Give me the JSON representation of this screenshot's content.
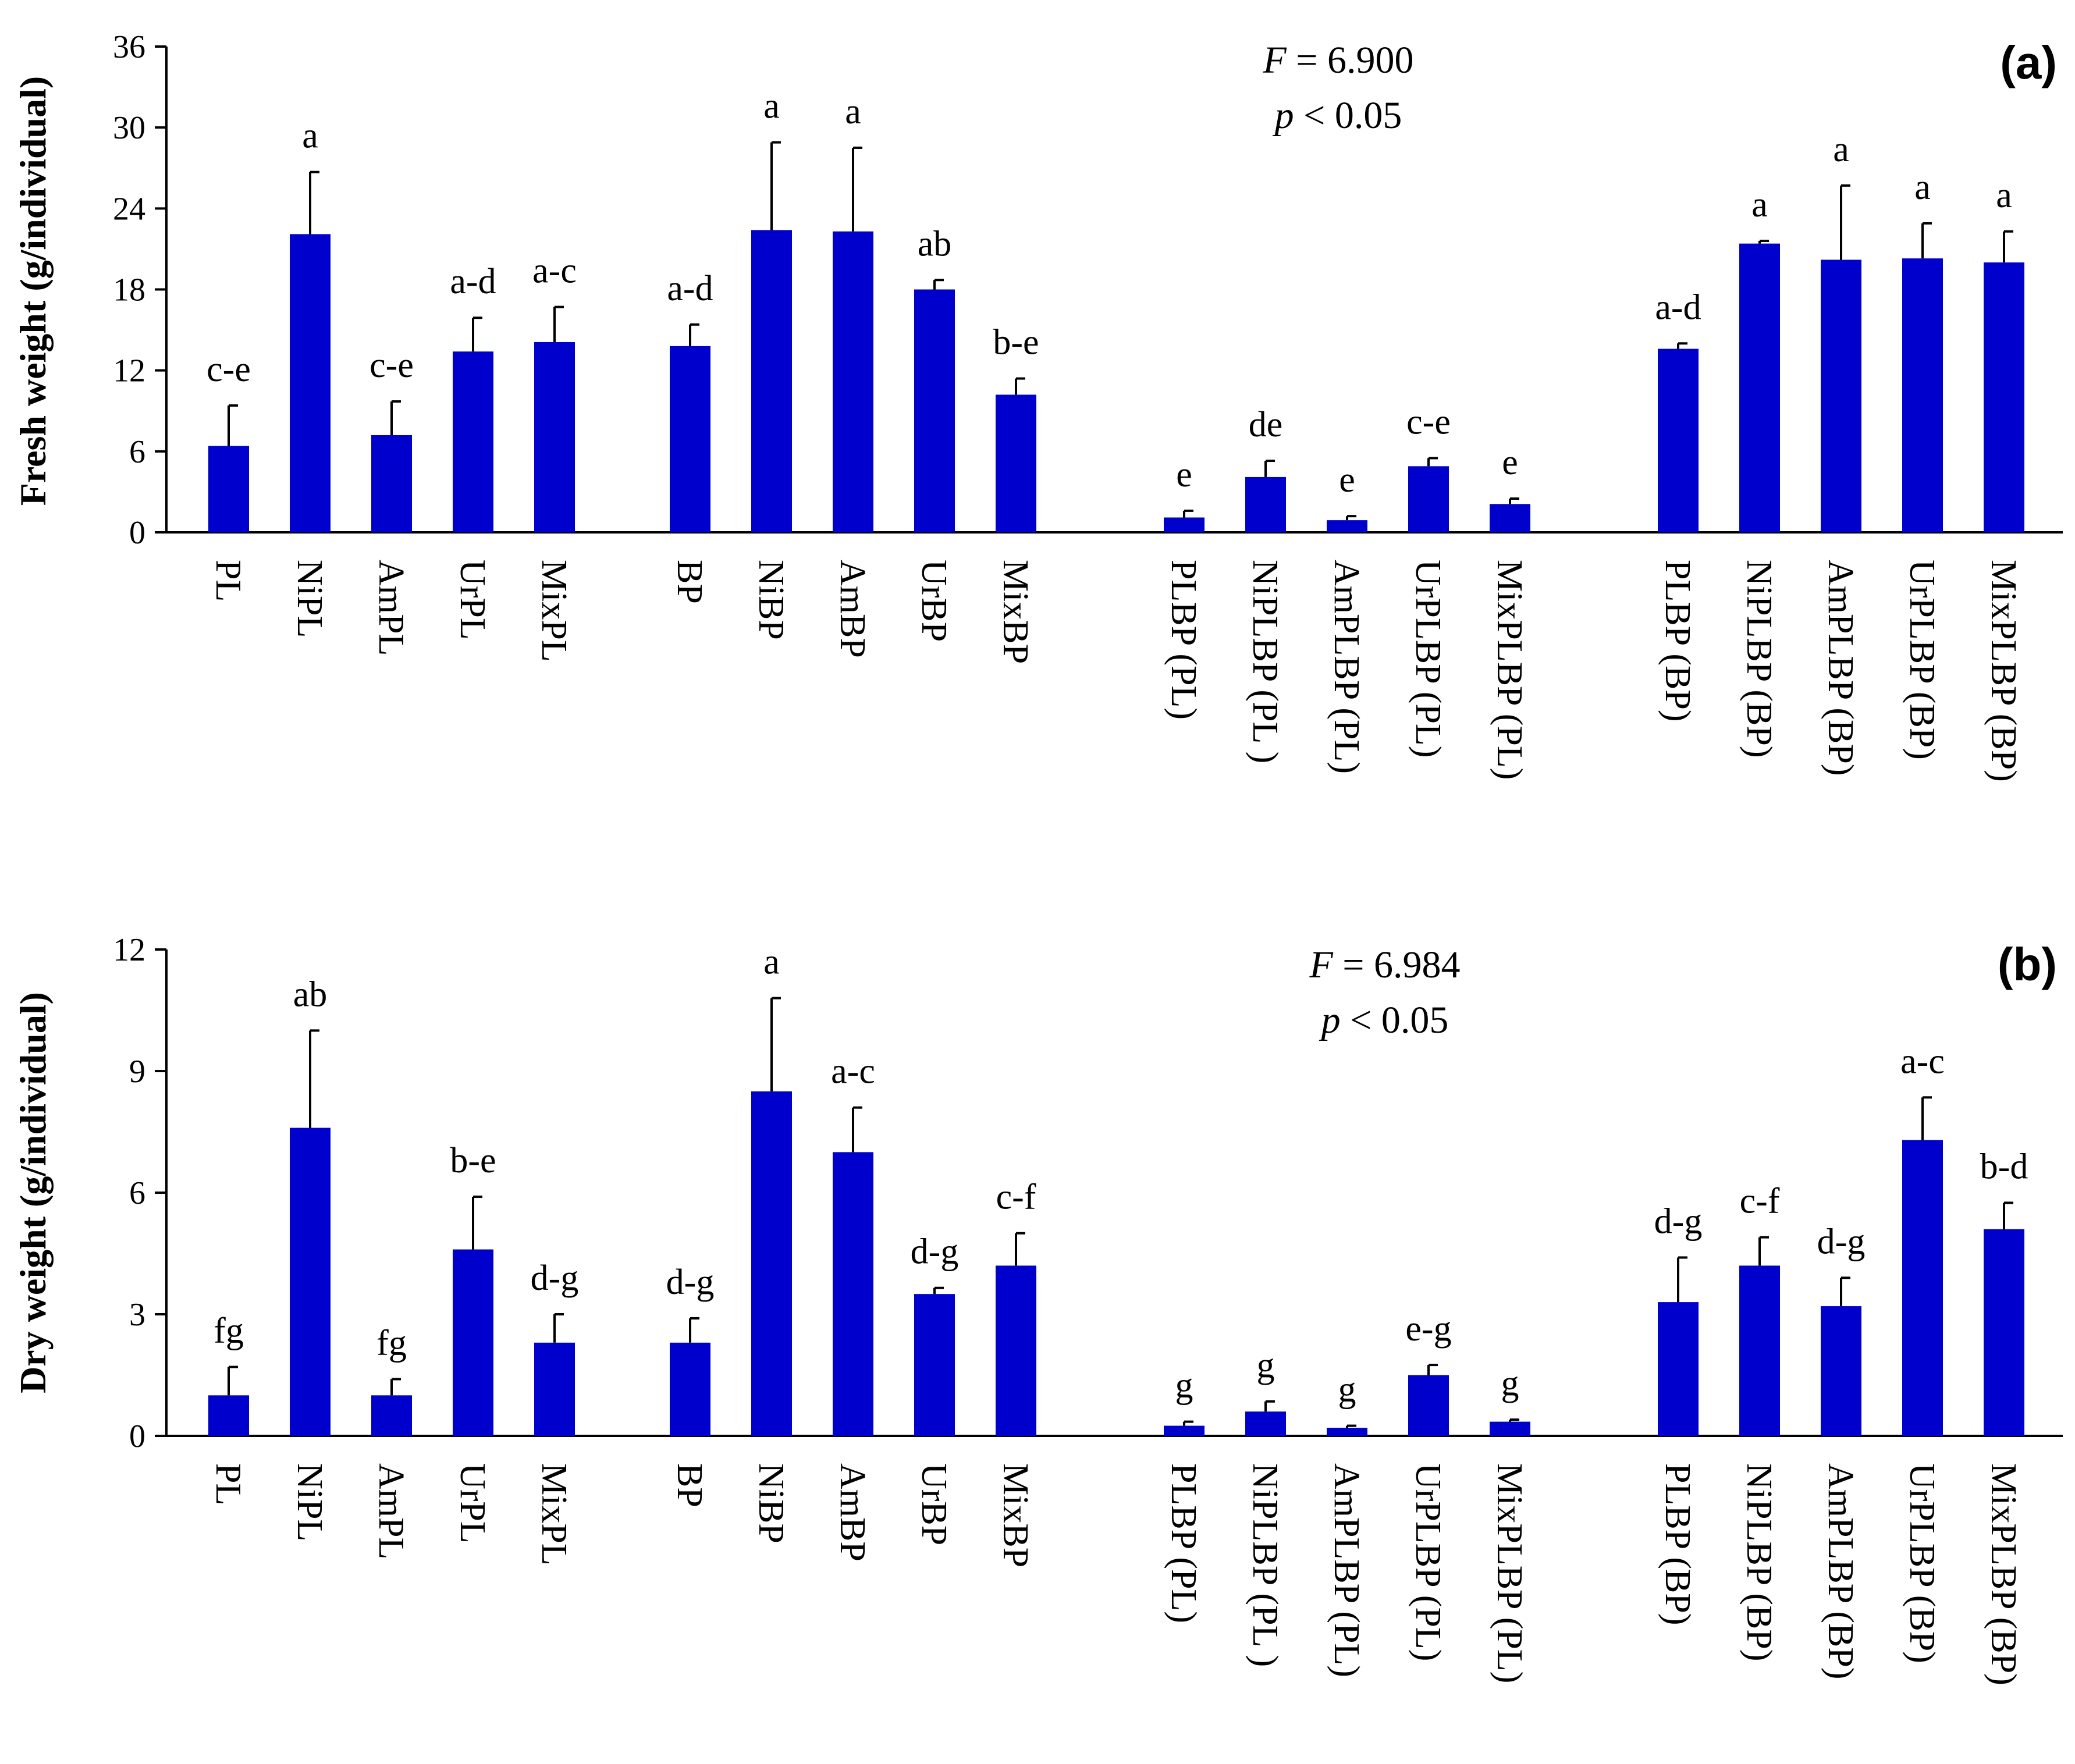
{
  "colors": {
    "bar": "#0000cc",
    "axis": "#000000",
    "errorbar": "#000000"
  },
  "chart_data": [
    {
      "type": "bar",
      "panel_label": "(a)",
      "ylabel": "Fresh weight (g/individual)",
      "ylim": [
        0,
        36
      ],
      "yticks": [
        "0",
        "6",
        "12",
        "18",
        "24",
        "30",
        "36"
      ],
      "stat": {
        "f_symbol": "F",
        "f_value": " = 6.900",
        "p_symbol": "p",
        "p_value": " < 0.05"
      },
      "groups": [
        [
          "PL",
          "NiPL",
          "AmPL",
          "UrPL",
          "MixPL"
        ],
        [
          "BP",
          "NiBP",
          "AmBP",
          "UrBP",
          "MixBP"
        ],
        [
          "PLBP (PL)",
          "NiPLBP (PL )",
          "AmPLBP (PL)",
          "UrPLBP (PL)",
          "MixPLBP (PL)"
        ],
        [
          "PLBP (BP)",
          "NiPLBP (BP)",
          "AmPLBP (BP)",
          "UrPLBP (BP)",
          "MixPLBP (BP)"
        ]
      ],
      "values": [
        [
          6.4,
          22.1,
          7.2,
          13.4,
          14.1
        ],
        [
          13.8,
          22.4,
          22.3,
          18.0,
          10.2
        ],
        [
          1.1,
          4.1,
          0.9,
          4.9,
          2.1
        ],
        [
          13.6,
          21.4,
          20.2,
          20.3,
          20.0
        ]
      ],
      "errors": [
        [
          3.0,
          4.6,
          2.5,
          2.5,
          2.6
        ],
        [
          1.6,
          6.5,
          6.2,
          0.7,
          1.2
        ],
        [
          0.5,
          1.2,
          0.3,
          0.6,
          0.4
        ],
        [
          0.4,
          0.2,
          5.5,
          2.6,
          2.3
        ]
      ],
      "letters": [
        [
          "c-e",
          "a",
          "c-e",
          "a-d",
          "a-c"
        ],
        [
          "a-d",
          "a",
          "a",
          "ab",
          "b-e"
        ],
        [
          "e",
          "de",
          "e",
          "c-e",
          "e"
        ],
        [
          "a-d",
          "a",
          "a",
          "a",
          "a"
        ]
      ]
    },
    {
      "type": "bar",
      "panel_label": "(b)",
      "ylabel": "Dry weight (g/individual)",
      "ylim": [
        0,
        12
      ],
      "yticks": [
        "0",
        "3",
        "6",
        "9",
        "12"
      ],
      "stat": {
        "f_symbol": "F",
        "f_value": " = 6.984",
        "p_symbol": "p",
        "p_value": " < 0.05"
      },
      "groups": [
        [
          "PL",
          "NiPL",
          "AmPL",
          "UrPL",
          "MixPL"
        ],
        [
          "BP",
          "NiBP",
          "AmBP",
          "UrBP",
          "MixBP"
        ],
        [
          "PLBP (PL)",
          "NiPLBP (PL )",
          "AmPLBP (PL)",
          "UrPLBP (PL)",
          "MixPLBP (PL)"
        ],
        [
          "PLBP (BP)",
          "NiPLBP (BP)",
          "AmPLBP (BP)",
          "UrPLBP (BP)",
          "MixPLBP (BP)"
        ]
      ],
      "values": [
        [
          1.0,
          7.6,
          1.0,
          4.6,
          2.3
        ],
        [
          2.3,
          8.5,
          7.0,
          3.5,
          4.2
        ],
        [
          0.25,
          0.6,
          0.2,
          1.5,
          0.35
        ],
        [
          3.3,
          4.2,
          3.2,
          7.3,
          5.1
        ]
      ],
      "errors": [
        [
          0.7,
          2.4,
          0.4,
          1.3,
          0.7
        ],
        [
          0.6,
          2.3,
          1.1,
          0.15,
          0.8
        ],
        [
          0.1,
          0.25,
          0.05,
          0.25,
          0.05
        ],
        [
          1.1,
          0.7,
          0.7,
          1.05,
          0.65
        ]
      ],
      "letters": [
        [
          "fg",
          "ab",
          "fg",
          "b-e",
          "d-g"
        ],
        [
          "d-g",
          "a",
          "a-c",
          "d-g",
          "c-f"
        ],
        [
          "g",
          "g",
          "g",
          "e-g",
          "g"
        ],
        [
          "d-g",
          "c-f",
          "d-g",
          "a-c",
          "b-d"
        ]
      ]
    }
  ]
}
